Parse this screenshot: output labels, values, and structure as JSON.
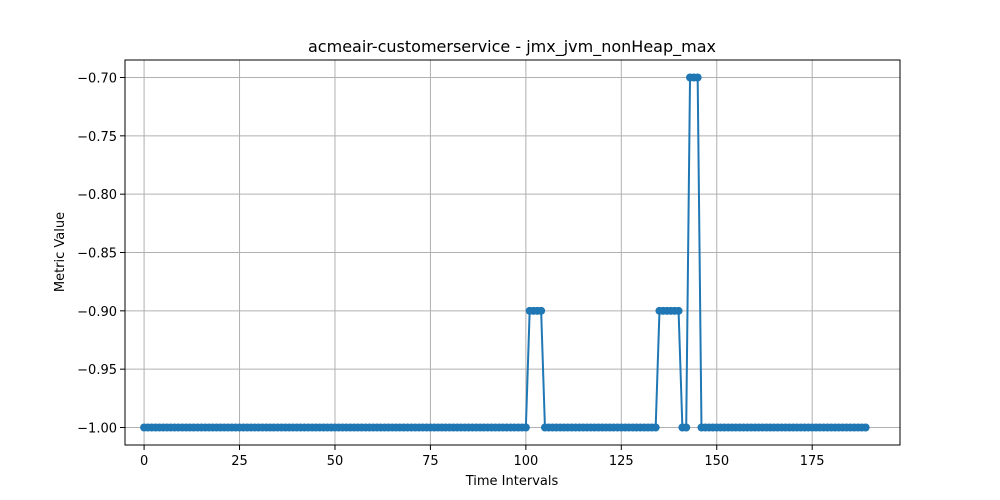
{
  "chart_data": {
    "type": "line",
    "title": "acmeair-customerservice - jmx_jvm_nonHeap_max",
    "xlabel": "Time Intervals",
    "ylabel": "Metric Value",
    "xlim": [
      -5,
      198
    ],
    "ylim": [
      -1.015,
      -0.685
    ],
    "xticks": [
      0,
      25,
      50,
      75,
      100,
      125,
      150,
      175
    ],
    "yticks": [
      -1.0,
      -0.95,
      -0.9,
      -0.85,
      -0.8,
      -0.75,
      -0.7
    ],
    "ytick_labels": [
      "−1.00",
      "−0.95",
      "−0.90",
      "−0.85",
      "−0.80",
      "−0.75",
      "−0.70"
    ],
    "grid": true,
    "series_color": "#1f77b4",
    "series": [
      {
        "segments": [
          {
            "from": 0,
            "to": 100,
            "value": -1.0
          },
          {
            "from": 101,
            "to": 104,
            "value": -0.9
          },
          {
            "from": 105,
            "to": 134,
            "value": -1.0
          },
          {
            "from": 135,
            "to": 140,
            "value": -0.9
          },
          {
            "from": 141,
            "to": 142,
            "value": -1.0
          },
          {
            "from": 143,
            "to": 145,
            "value": -0.7
          },
          {
            "from": 146,
            "to": 189,
            "value": -1.0
          }
        ]
      }
    ]
  }
}
